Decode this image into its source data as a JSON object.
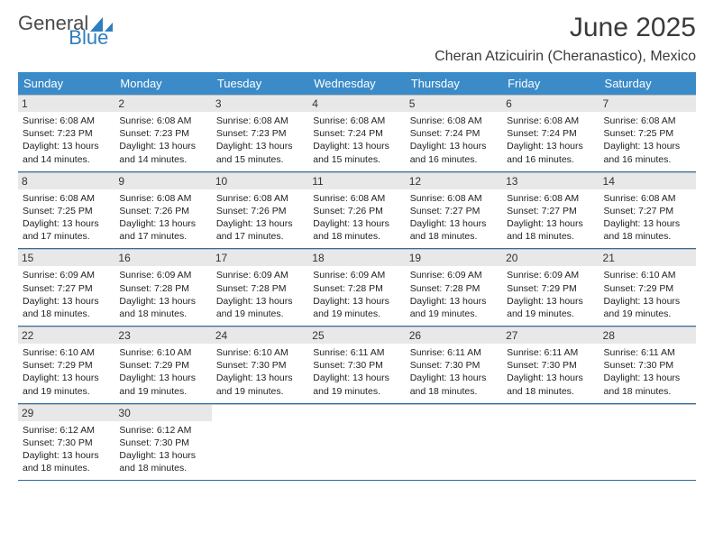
{
  "logo": {
    "part1": "General",
    "part2": "Blue"
  },
  "title": "June 2025",
  "subtitle": "Cheran Atzicuirin (Cheranastico), Mexico",
  "colors": {
    "header_bg": "#3b8bc9",
    "header_text": "#ffffff",
    "daynum_bg": "#e8e8e8",
    "week_divider": "#2f6da3",
    "logo_blue": "#2f7fbf"
  },
  "weekdays": [
    "Sunday",
    "Monday",
    "Tuesday",
    "Wednesday",
    "Thursday",
    "Friday",
    "Saturday"
  ],
  "weeks": [
    [
      {
        "n": "1",
        "sr": "6:08 AM",
        "ss": "7:23 PM",
        "dl": "13 hours and 14 minutes."
      },
      {
        "n": "2",
        "sr": "6:08 AM",
        "ss": "7:23 PM",
        "dl": "13 hours and 14 minutes."
      },
      {
        "n": "3",
        "sr": "6:08 AM",
        "ss": "7:23 PM",
        "dl": "13 hours and 15 minutes."
      },
      {
        "n": "4",
        "sr": "6:08 AM",
        "ss": "7:24 PM",
        "dl": "13 hours and 15 minutes."
      },
      {
        "n": "5",
        "sr": "6:08 AM",
        "ss": "7:24 PM",
        "dl": "13 hours and 16 minutes."
      },
      {
        "n": "6",
        "sr": "6:08 AM",
        "ss": "7:24 PM",
        "dl": "13 hours and 16 minutes."
      },
      {
        "n": "7",
        "sr": "6:08 AM",
        "ss": "7:25 PM",
        "dl": "13 hours and 16 minutes."
      }
    ],
    [
      {
        "n": "8",
        "sr": "6:08 AM",
        "ss": "7:25 PM",
        "dl": "13 hours and 17 minutes."
      },
      {
        "n": "9",
        "sr": "6:08 AM",
        "ss": "7:26 PM",
        "dl": "13 hours and 17 minutes."
      },
      {
        "n": "10",
        "sr": "6:08 AM",
        "ss": "7:26 PM",
        "dl": "13 hours and 17 minutes."
      },
      {
        "n": "11",
        "sr": "6:08 AM",
        "ss": "7:26 PM",
        "dl": "13 hours and 18 minutes."
      },
      {
        "n": "12",
        "sr": "6:08 AM",
        "ss": "7:27 PM",
        "dl": "13 hours and 18 minutes."
      },
      {
        "n": "13",
        "sr": "6:08 AM",
        "ss": "7:27 PM",
        "dl": "13 hours and 18 minutes."
      },
      {
        "n": "14",
        "sr": "6:08 AM",
        "ss": "7:27 PM",
        "dl": "13 hours and 18 minutes."
      }
    ],
    [
      {
        "n": "15",
        "sr": "6:09 AM",
        "ss": "7:27 PM",
        "dl": "13 hours and 18 minutes."
      },
      {
        "n": "16",
        "sr": "6:09 AM",
        "ss": "7:28 PM",
        "dl": "13 hours and 18 minutes."
      },
      {
        "n": "17",
        "sr": "6:09 AM",
        "ss": "7:28 PM",
        "dl": "13 hours and 19 minutes."
      },
      {
        "n": "18",
        "sr": "6:09 AM",
        "ss": "7:28 PM",
        "dl": "13 hours and 19 minutes."
      },
      {
        "n": "19",
        "sr": "6:09 AM",
        "ss": "7:28 PM",
        "dl": "13 hours and 19 minutes."
      },
      {
        "n": "20",
        "sr": "6:09 AM",
        "ss": "7:29 PM",
        "dl": "13 hours and 19 minutes."
      },
      {
        "n": "21",
        "sr": "6:10 AM",
        "ss": "7:29 PM",
        "dl": "13 hours and 19 minutes."
      }
    ],
    [
      {
        "n": "22",
        "sr": "6:10 AM",
        "ss": "7:29 PM",
        "dl": "13 hours and 19 minutes."
      },
      {
        "n": "23",
        "sr": "6:10 AM",
        "ss": "7:29 PM",
        "dl": "13 hours and 19 minutes."
      },
      {
        "n": "24",
        "sr": "6:10 AM",
        "ss": "7:30 PM",
        "dl": "13 hours and 19 minutes."
      },
      {
        "n": "25",
        "sr": "6:11 AM",
        "ss": "7:30 PM",
        "dl": "13 hours and 19 minutes."
      },
      {
        "n": "26",
        "sr": "6:11 AM",
        "ss": "7:30 PM",
        "dl": "13 hours and 18 minutes."
      },
      {
        "n": "27",
        "sr": "6:11 AM",
        "ss": "7:30 PM",
        "dl": "13 hours and 18 minutes."
      },
      {
        "n": "28",
        "sr": "6:11 AM",
        "ss": "7:30 PM",
        "dl": "13 hours and 18 minutes."
      }
    ],
    [
      {
        "n": "29",
        "sr": "6:12 AM",
        "ss": "7:30 PM",
        "dl": "13 hours and 18 minutes."
      },
      {
        "n": "30",
        "sr": "6:12 AM",
        "ss": "7:30 PM",
        "dl": "13 hours and 18 minutes."
      },
      null,
      null,
      null,
      null,
      null
    ]
  ],
  "labels": {
    "sunrise": "Sunrise:",
    "sunset": "Sunset:",
    "daylight": "Daylight:"
  }
}
